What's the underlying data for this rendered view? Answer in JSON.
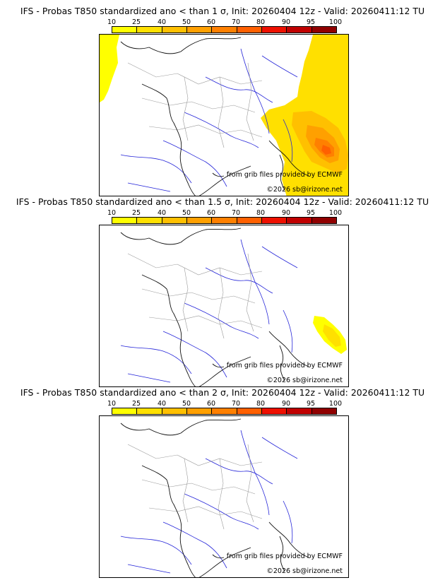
{
  "panels": [
    {
      "title": "IFS - Probas T850  standardized ano < than 1 σ, Init: 20260404 12z - Valid: 20260411:12 TU",
      "credit": "from grib files provided by ECMWF",
      "copyright": "©2026 sb@irizone.net"
    },
    {
      "title": "IFS - Probas T850  standardized ano < than 1.5 σ, Init: 20260404 12z - Valid: 20260411:12 TU",
      "credit": "from grib files provided by ECMWF",
      "copyright": "©2026 sb@irizone.net"
    },
    {
      "title": "IFS - Probas T850  standardized ano < than 2 σ, Init: 20260404 12z - Valid: 20260411:12 TU",
      "credit": "from grib files provided by ECMWF",
      "copyright": "©2026 sb@irizone.net"
    }
  ],
  "colorbar": {
    "labels": [
      "10",
      "25",
      "40",
      "50",
      "60",
      "70",
      "80",
      "90",
      "95",
      "100"
    ],
    "colors": [
      "#ffff00",
      "#ffe000",
      "#ffc000",
      "#ffa000",
      "#ff8000",
      "#ff6000",
      "#ee1000",
      "#c00000",
      "#900000",
      "#600000"
    ]
  },
  "colors": {
    "coast": "#111111",
    "rivers": "#2323d8",
    "borders": "#9a9a9a"
  }
}
